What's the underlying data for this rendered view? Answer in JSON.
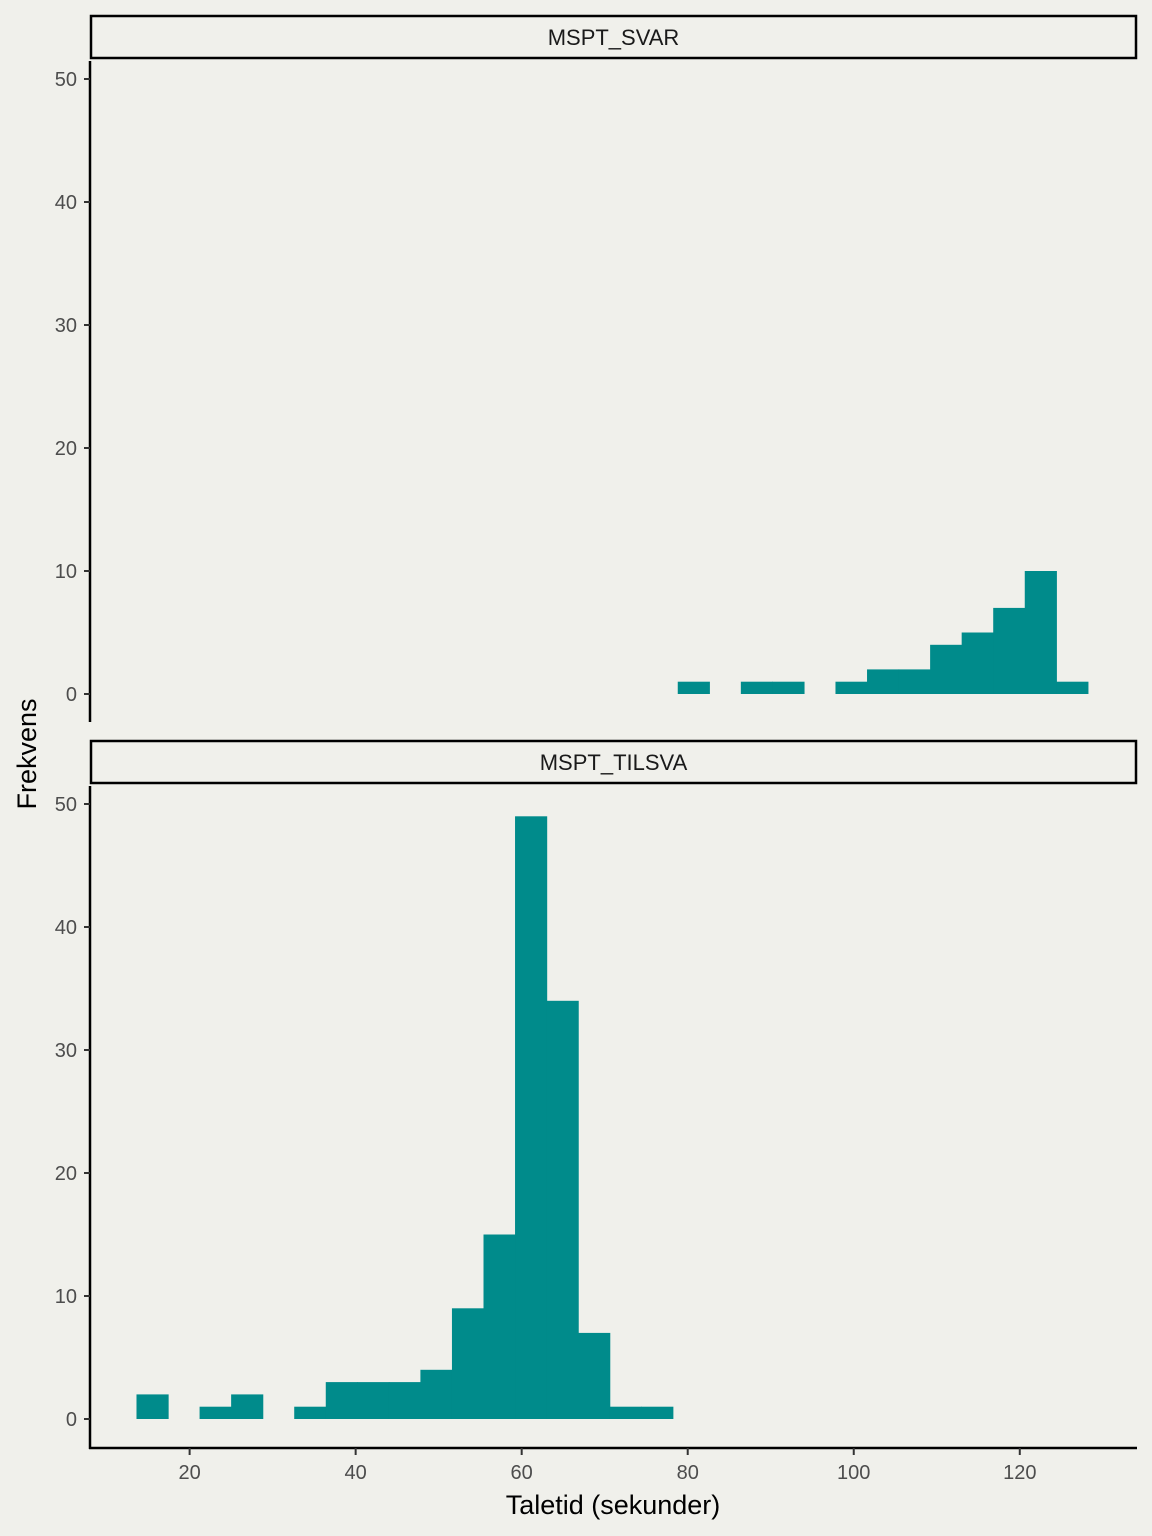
{
  "chart_data": {
    "type": "bar",
    "xlabel": "Taletid (sekunder)",
    "ylabel": "Frekvens",
    "bar_color": "#008b8b",
    "background": "#f0f0eb",
    "xlim": [
      8,
      134
    ],
    "ylim": [
      -2.5,
      52.8
    ],
    "x_ticks": [
      20,
      40,
      60,
      80,
      100,
      120
    ],
    "y_ticks": [
      0,
      10,
      20,
      30,
      40,
      50
    ],
    "bin_width": 3.8,
    "panels": [
      {
        "strip": "MSPT_SVAR",
        "bins": [
          {
            "x": 80.7,
            "count": 1
          },
          {
            "x": 84.5,
            "count": 0
          },
          {
            "x": 88.3,
            "count": 1
          },
          {
            "x": 92.1,
            "count": 1
          },
          {
            "x": 95.9,
            "count": 0
          },
          {
            "x": 99.7,
            "count": 1
          },
          {
            "x": 103.5,
            "count": 2
          },
          {
            "x": 107.3,
            "count": 2
          },
          {
            "x": 111.1,
            "count": 4
          },
          {
            "x": 114.9,
            "count": 5
          },
          {
            "x": 118.7,
            "count": 7
          },
          {
            "x": 122.5,
            "count": 10
          },
          {
            "x": 126.3,
            "count": 1
          }
        ]
      },
      {
        "strip": "MSPT_TILSVA",
        "bins": [
          {
            "x": 15.5,
            "count": 2
          },
          {
            "x": 19.3,
            "count": 0
          },
          {
            "x": 23.1,
            "count": 1
          },
          {
            "x": 26.9,
            "count": 2
          },
          {
            "x": 30.7,
            "count": 0
          },
          {
            "x": 34.5,
            "count": 1
          },
          {
            "x": 38.3,
            "count": 3
          },
          {
            "x": 42.1,
            "count": 3
          },
          {
            "x": 45.9,
            "count": 3
          },
          {
            "x": 49.7,
            "count": 4
          },
          {
            "x": 53.5,
            "count": 9
          },
          {
            "x": 57.3,
            "count": 15
          },
          {
            "x": 61.1,
            "count": 49
          },
          {
            "x": 64.9,
            "count": 34
          },
          {
            "x": 68.7,
            "count": 7
          },
          {
            "x": 72.5,
            "count": 1
          },
          {
            "x": 76.3,
            "count": 1
          }
        ]
      }
    ]
  }
}
